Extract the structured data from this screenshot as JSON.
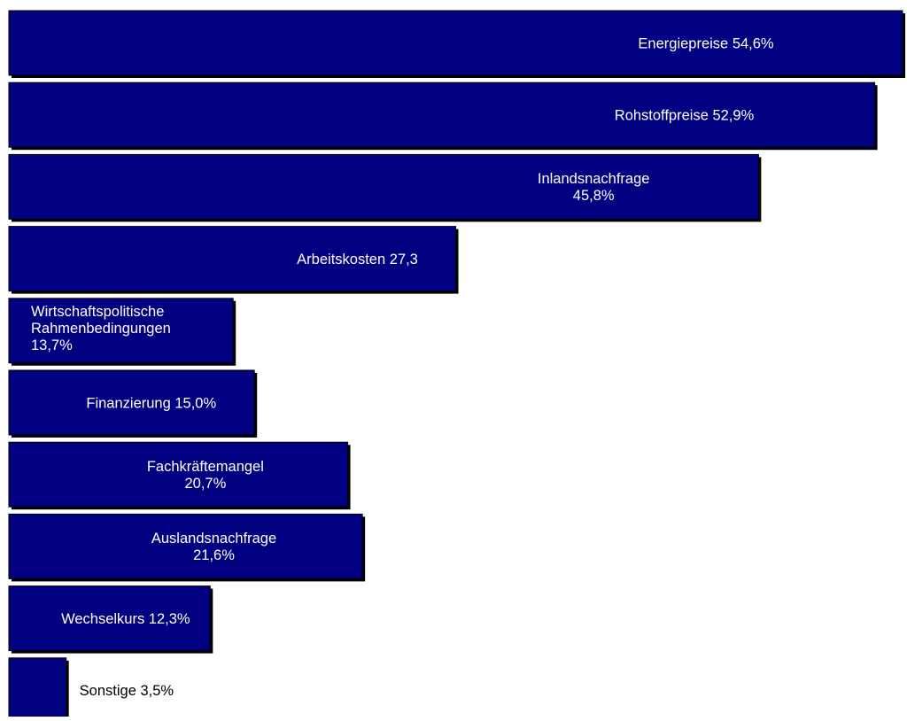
{
  "chart_data": {
    "type": "bar",
    "orientation": "horizontal",
    "categories": [
      "Energiepreise",
      "Rohstoffpreise",
      "Inlandsnachfrage",
      "Arbeitskosten",
      "Wirtschaftspolitische Rahmenbedingungen",
      "Finanzierung",
      "Fachkräftemangel",
      "Auslandsnachfrage",
      "Wechselkurs",
      "Sonstige"
    ],
    "values": [
      54.6,
      52.9,
      45.8,
      27.3,
      13.7,
      15.0,
      20.7,
      21.6,
      12.3,
      3.5
    ],
    "data_labels": [
      [
        "Energiepreise 54,6%"
      ],
      [
        "Rohstoffpreise 52,9%"
      ],
      [
        "Inlandsnachfrage",
        "45,8%"
      ],
      [
        "Arbeitskosten 27,3"
      ],
      [
        "Wirtschaftspolitische",
        "Rahmenbedingungen",
        "13,7%"
      ],
      [
        "Finanzierung 15,0%"
      ],
      [
        "Fachkräftemangel",
        "20,7%"
      ],
      [
        "Auslandsnachfrage",
        "21,6%"
      ],
      [
        "Wechselkurs 12,3%"
      ],
      [
        "Sonstige 3,5%"
      ]
    ],
    "label_placement": [
      "inside",
      "inside",
      "inside",
      "inside",
      "inside-left",
      "inside",
      "inside",
      "inside",
      "inside",
      "outside"
    ],
    "xlim": [
      0,
      54.6
    ],
    "grid": false,
    "legend": "none",
    "colors": {
      "bar_fill": "#000080",
      "bar_stroke": "#000000",
      "label_inside": "#ffffff",
      "label_outside": "#000000"
    }
  }
}
